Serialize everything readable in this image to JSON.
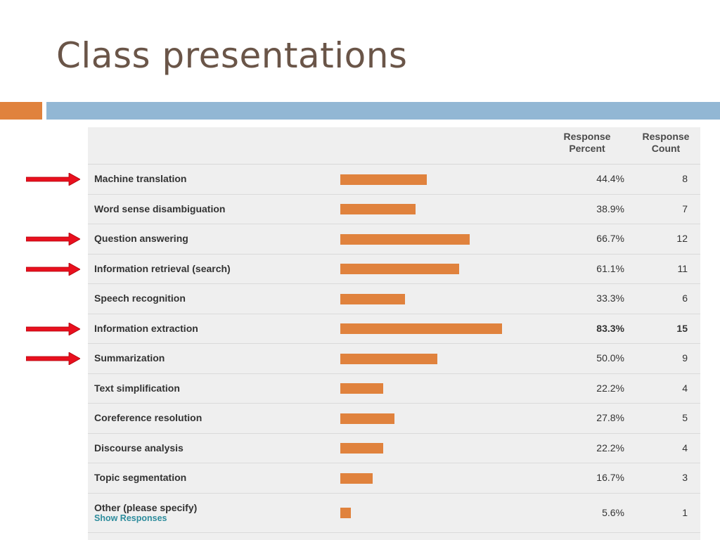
{
  "slide": {
    "title": "Class presentations"
  },
  "colors": {
    "bar": "#e0823d",
    "arrow": "#e8101e",
    "accent_orange": "#e0823d",
    "accent_blue": "#92b7d4",
    "title": "#6a5548",
    "link": "#2d8c9c"
  },
  "table": {
    "col_percent": "Response\nPercent",
    "col_count": "Response\nCount",
    "show_responses": "Show Responses"
  },
  "chart_data": {
    "type": "bar",
    "orientation": "horizontal",
    "title": "",
    "xlabel": "",
    "ylabel": "",
    "xlim": [
      0,
      100
    ],
    "categories": [
      "Machine translation",
      "Word sense disambiguation",
      "Question answering",
      "Information retrieval (search)",
      "Speech recognition",
      "Information extraction",
      "Summarization",
      "Text simplification",
      "Coreference resolution",
      "Discourse analysis",
      "Topic segmentation",
      "Other (please specify)"
    ],
    "values": [
      44.4,
      38.9,
      66.7,
      61.1,
      33.3,
      83.3,
      50.0,
      22.2,
      27.8,
      22.2,
      16.7,
      5.6
    ],
    "percent_labels": [
      "44.4%",
      "38.9%",
      "66.7%",
      "61.1%",
      "33.3%",
      "83.3%",
      "50.0%",
      "22.2%",
      "27.8%",
      "22.2%",
      "16.7%",
      "5.6%"
    ],
    "counts": [
      "8",
      "7",
      "12",
      "11",
      "6",
      "15",
      "9",
      "4",
      "5",
      "4",
      "3",
      "1"
    ],
    "highlighted_index": 5,
    "arrow_marked": [
      0,
      2,
      3,
      5,
      6
    ],
    "grid": false,
    "legend": "none"
  }
}
